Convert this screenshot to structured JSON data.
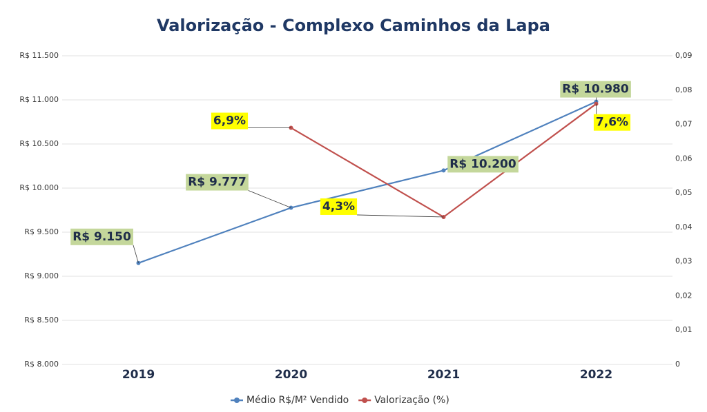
{
  "chart_data": {
    "type": "line",
    "title": "Valorização - Complexo Caminhos da Lapa",
    "categories": [
      "2019",
      "2020",
      "2021",
      "2022"
    ],
    "series": [
      {
        "name": "Médio R$/M² Vendido",
        "color": "#4f81bd",
        "values": [
          9150,
          9777,
          10200,
          10980
        ],
        "value_labels": [
          "R$ 9.150",
          "R$ 9.777",
          "R$ 10.200",
          "R$ 10.980"
        ],
        "label_color": "#c4d79b"
      },
      {
        "name": "Valorização (%)",
        "color": "#c0504d",
        "axis": "y2",
        "values": [
          null,
          0.069,
          0.043,
          0.076
        ],
        "value_labels": [
          null,
          "6,9%",
          "4,3%",
          "7,6%"
        ],
        "label_color": "#ffff00"
      }
    ],
    "ylim": [
      8000,
      11500
    ],
    "yticks": [
      {
        "value": 8000,
        "label": "R$ 8.000"
      },
      {
        "value": 8500,
        "label": "R$ 8.500"
      },
      {
        "value": 9000,
        "label": "R$ 9.000"
      },
      {
        "value": 9500,
        "label": "R$ 9.500"
      },
      {
        "value": 10000,
        "label": "R$ 10.000"
      },
      {
        "value": 10500,
        "label": "R$ 10.500"
      },
      {
        "value": 11000,
        "label": "R$ 11.000"
      },
      {
        "value": 11500,
        "label": "R$ 11.500"
      }
    ],
    "y2lim": [
      0,
      0.09
    ],
    "y2ticks": [
      0,
      {
        "value": 0.01,
        "label": "0,01"
      },
      {
        "value": 0.02,
        "label": "0,02"
      },
      {
        "value": 0.03,
        "label": "0,03"
      },
      {
        "value": 0.04,
        "label": "0,04"
      },
      {
        "value": 0.05,
        "label": "0,05"
      },
      {
        "value": 0.06,
        "label": "0,06"
      },
      {
        "value": 0.07,
        "label": "0,07"
      },
      {
        "value": 0.08,
        "label": "0,08"
      },
      {
        "value": 0.09,
        "label": "0,09"
      }
    ],
    "grid": true,
    "legend": "bottom"
  }
}
